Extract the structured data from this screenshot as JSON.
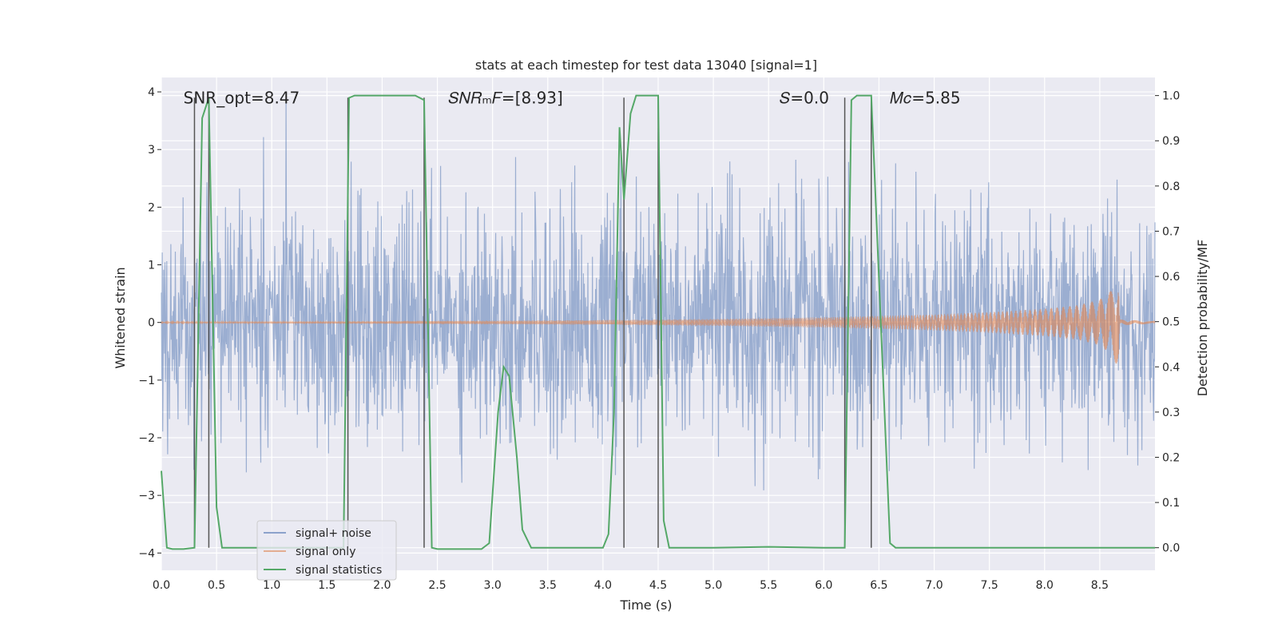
{
  "chart_data": {
    "type": "line",
    "title": "stats at each timestep for test data 13040 [signal=1]",
    "xlabel": "Time (s)",
    "ylabel_left": "Whitened strain",
    "ylabel_right": "Detection probability/MF",
    "xlim": [
      0.0,
      9.0
    ],
    "ylim_left": [
      -4.3,
      4.25
    ],
    "ylim_right": [
      -0.05,
      1.04
    ],
    "grid": true,
    "legend_position": "lower-left",
    "x_ticks": [
      "0.0",
      "0.5",
      "1.0",
      "1.5",
      "2.0",
      "2.5",
      "3.0",
      "3.5",
      "4.0",
      "4.5",
      "5.0",
      "5.5",
      "6.0",
      "6.5",
      "7.0",
      "7.5",
      "8.0",
      "8.5"
    ],
    "y_left_ticks": [
      "−4",
      "−3",
      "−2",
      "−1",
      "0",
      "1",
      "2",
      "3",
      "4"
    ],
    "y_right_ticks": [
      "0.0",
      "0.1",
      "0.2",
      "0.3",
      "0.4",
      "0.5",
      "0.6",
      "0.7",
      "0.8",
      "0.9",
      "1.0"
    ],
    "annotations": [
      {
        "text": "SNR_opt=8.47",
        "x": 0.2,
        "y": 3.9
      },
      {
        "text": "𝑆𝑁𝑅ₘ𝐹=[8.93]",
        "x": 2.6,
        "y": 3.9
      },
      {
        "text": "𝑆=0.0",
        "x": 5.6,
        "y": 3.9
      },
      {
        "text": "𝑀𝑐=5.85",
        "x": 6.6,
        "y": 3.9
      }
    ],
    "vertical_lines": [
      0.3,
      0.43,
      1.69,
      2.38,
      4.19,
      4.5,
      6.19,
      6.43
    ],
    "series": [
      {
        "name": "signal+ noise",
        "color": "#4c72b0",
        "description_values": {
          "std": 1.0,
          "x_start": 0.0,
          "x_end": 9.0
        }
      },
      {
        "name": "signal only",
        "color": "#dd8452",
        "envelope_points": [
          [
            0.0,
            0.01
          ],
          [
            2.0,
            0.02
          ],
          [
            4.0,
            0.04
          ],
          [
            5.0,
            0.06
          ],
          [
            6.0,
            0.09
          ],
          [
            7.0,
            0.14
          ],
          [
            7.5,
            0.18
          ],
          [
            8.0,
            0.24
          ],
          [
            8.3,
            0.3
          ],
          [
            8.5,
            0.4
          ],
          [
            8.6,
            0.55
          ],
          [
            8.67,
            0.8
          ],
          [
            8.68,
            0.05
          ],
          [
            9.0,
            0.02
          ]
        ]
      },
      {
        "name": "signal statistics",
        "color": "#55a868",
        "x": [
          0.0,
          0.05,
          0.1,
          0.2,
          0.3,
          0.37,
          0.43,
          0.5,
          0.55,
          1.0,
          1.5,
          1.65,
          1.7,
          1.75,
          2.0,
          2.3,
          2.38,
          2.45,
          2.5,
          2.9,
          2.97,
          3.05,
          3.1,
          3.15,
          3.22,
          3.27,
          3.35,
          3.5,
          4.0,
          4.05,
          4.1,
          4.15,
          4.19,
          4.25,
          4.3,
          4.5,
          4.55,
          4.6,
          4.65,
          5.0,
          5.5,
          6.0,
          6.19,
          6.25,
          6.3,
          6.43,
          6.55,
          6.6,
          6.65,
          7.0,
          8.0,
          9.0
        ],
        "y": [
          0.17,
          0.0,
          -0.003,
          -0.003,
          0.0,
          0.95,
          0.995,
          0.09,
          0.0,
          0.0,
          0.0,
          0.0,
          0.995,
          1.0,
          1.0,
          1.0,
          0.99,
          0.0,
          -0.003,
          -0.003,
          0.01,
          0.3,
          0.4,
          0.38,
          0.2,
          0.04,
          0.0,
          0.0,
          0.0,
          0.03,
          0.3,
          0.93,
          0.77,
          0.96,
          1.0,
          1.0,
          0.06,
          0.0,
          0.0,
          0.0,
          0.002,
          0.0,
          0.0,
          0.99,
          1.0,
          1.0,
          0.3,
          0.01,
          0.0,
          0.0,
          0.0,
          0.0
        ]
      }
    ]
  }
}
